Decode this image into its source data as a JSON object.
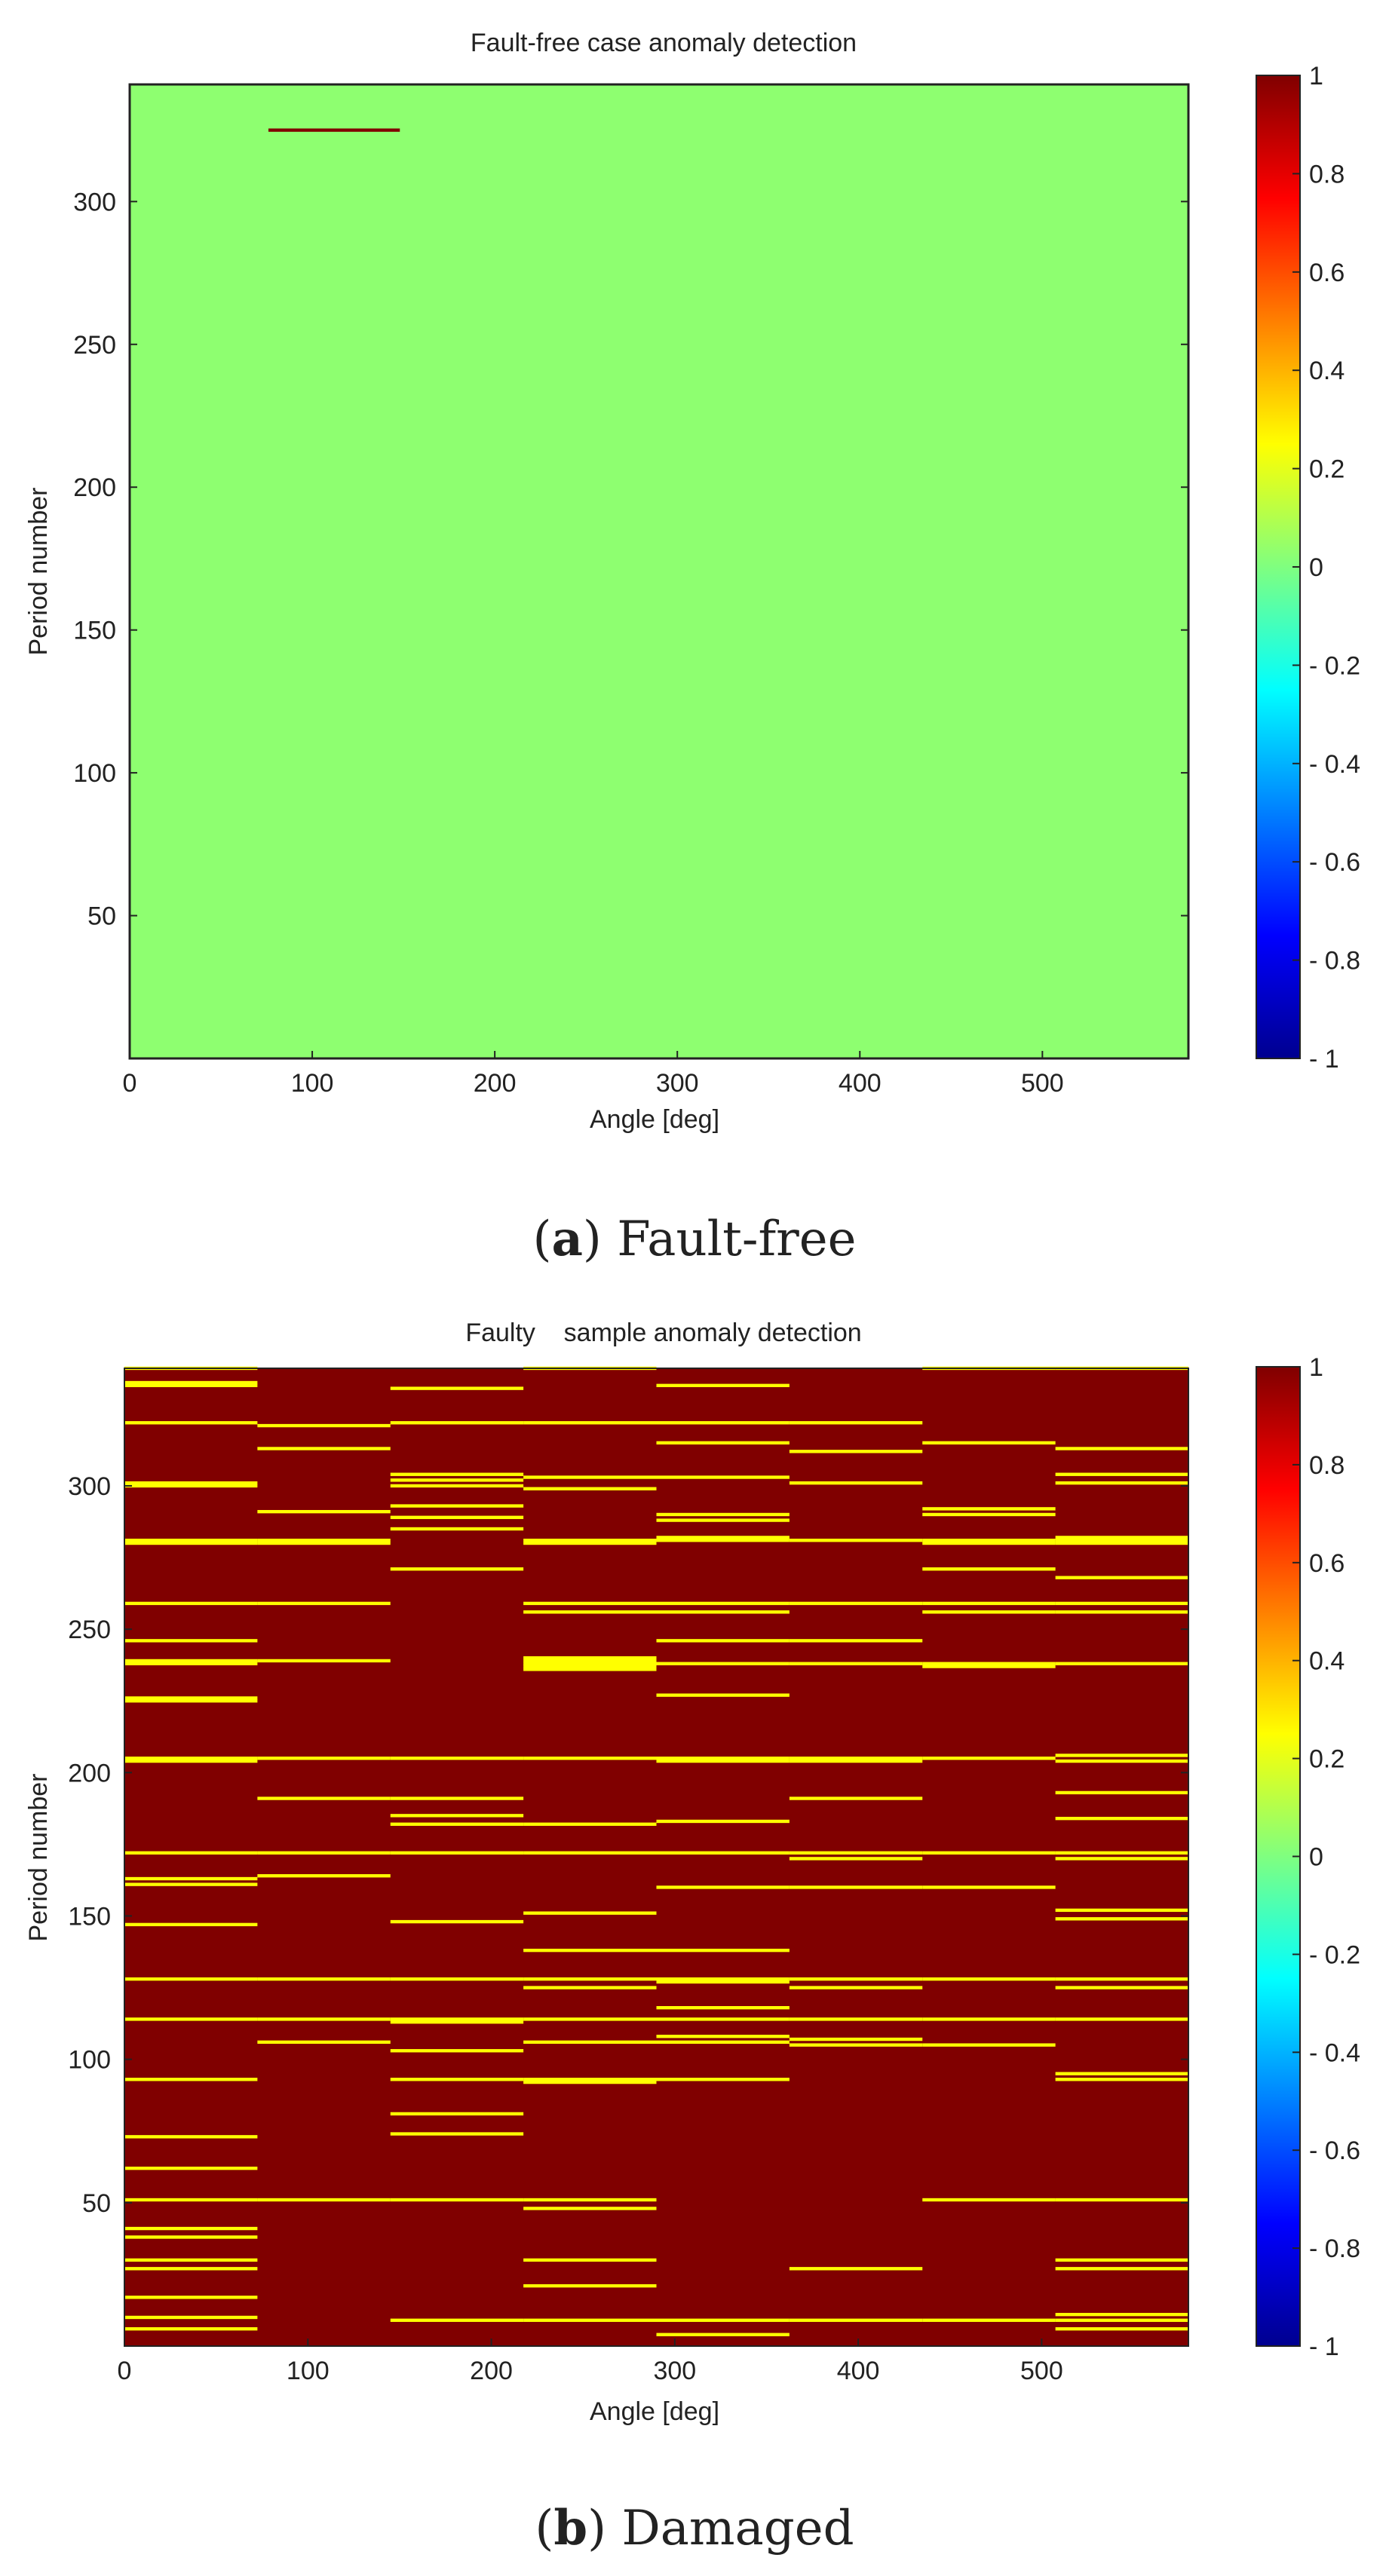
{
  "chart_data": [
    {
      "type": "heatmap",
      "title": "Fault-free case anomaly detection",
      "xlabel": "Angle [deg]",
      "ylabel": "Period number",
      "xlim": [
        0,
        580
      ],
      "ylim": [
        0,
        341
      ],
      "xticks": [
        0,
        100,
        200,
        300,
        400,
        500
      ],
      "yticks": [
        50,
        100,
        150,
        200,
        250,
        300
      ],
      "colorbar": {
        "colormap": "jet",
        "range": [
          -1,
          1
        ],
        "ticks": [
          "1",
          "0.8",
          "0.6",
          "0.4",
          "0.2",
          "0",
          "- 0.2",
          "- 0.4",
          "- 0.6",
          "- 0.8",
          "- 1"
        ]
      },
      "background_value": 0.25,
      "anomalies": [
        {
          "x_start": 76,
          "x_end": 148,
          "period": 325,
          "value": 1
        }
      ],
      "caption": {
        "letter": "a",
        "text": "Fault-free"
      }
    },
    {
      "type": "heatmap",
      "title": "Faulty    sample anomaly detection",
      "xlabel": "Angle [deg]",
      "ylabel": "Period number",
      "xlim": [
        0,
        580
      ],
      "ylim": [
        0,
        341
      ],
      "xticks": [
        0,
        100,
        200,
        300,
        400,
        500
      ],
      "yticks": [
        50,
        100,
        150,
        200,
        250,
        300
      ],
      "colorbar": {
        "colormap": "jet",
        "range": [
          -1,
          1
        ],
        "ticks": [
          "1",
          "0.8",
          "0.6",
          "0.4",
          "0.2",
          "0",
          "- 0.2",
          "- 0.4",
          "- 0.6",
          "- 0.8",
          "- 1"
        ]
      },
      "background_value": 1,
      "segment_value": 0.25,
      "angle_segments": [
        [
          0,
          72.5
        ],
        [
          72.5,
          145
        ],
        [
          145,
          217.5
        ],
        [
          217.5,
          290
        ],
        [
          290,
          362.5
        ],
        [
          362.5,
          435
        ],
        [
          435,
          507.5
        ],
        [
          507.5,
          580
        ]
      ],
      "segment_periods": [
        [
          341,
          336,
          335,
          322,
          301,
          300,
          281,
          280,
          259,
          246,
          239,
          238,
          226,
          225,
          205,
          204,
          172,
          163,
          161,
          147,
          128,
          114,
          93,
          73,
          62,
          51,
          41,
          38,
          30,
          27,
          17,
          10,
          6
        ],
        [
          321,
          313,
          291,
          281,
          280,
          259,
          239,
          205,
          191,
          172,
          164,
          128,
          114,
          106,
          51
        ],
        [
          334,
          322,
          304,
          302,
          300,
          293,
          289,
          285,
          271,
          205,
          191,
          185,
          182,
          172,
          148,
          128,
          114,
          113,
          103,
          93,
          81,
          74,
          51,
          9
        ],
        [
          341,
          322,
          303,
          299,
          281,
          280,
          259,
          256,
          240,
          239,
          238,
          237,
          236,
          205,
          182,
          172,
          151,
          138,
          128,
          125,
          114,
          106,
          93,
          92,
          51,
          48,
          30,
          21,
          9
        ],
        [
          335,
          322,
          315,
          303,
          290,
          288,
          282,
          281,
          259,
          256,
          246,
          238,
          227,
          205,
          204,
          183,
          172,
          160,
          138,
          128,
          127,
          118,
          114,
          108,
          106,
          93,
          9,
          4
        ],
        [
          322,
          312,
          301,
          281,
          259,
          246,
          238,
          205,
          204,
          191,
          172,
          170,
          160,
          128,
          125,
          114,
          107,
          105,
          27,
          9
        ],
        [
          341,
          315,
          292,
          290,
          281,
          280,
          271,
          259,
          256,
          238,
          237,
          205,
          172,
          160,
          128,
          114,
          105,
          51,
          9
        ],
        [
          341,
          313,
          304,
          301,
          282,
          281,
          280,
          268,
          259,
          256,
          238,
          206,
          204,
          193,
          184,
          172,
          170,
          152,
          149,
          128,
          125,
          114,
          95,
          93,
          51,
          30,
          27,
          11,
          9,
          6
        ]
      ],
      "caption": {
        "letter": "b",
        "text": "Damaged"
      }
    }
  ]
}
